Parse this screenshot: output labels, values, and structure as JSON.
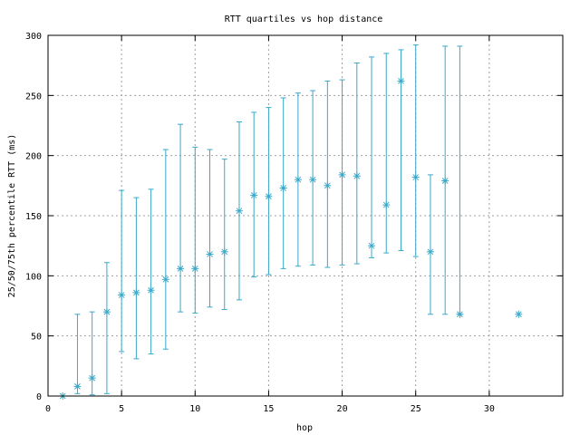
{
  "chart_data": {
    "type": "scatter",
    "title": "RTT quartiles vs hop distance",
    "xlabel": "hop",
    "ylabel": "25/50/75th percentile RTT (ms)",
    "xlim": [
      0,
      35
    ],
    "ylim": [
      0,
      300
    ],
    "xticks": [
      "0",
      "5",
      "10",
      "15",
      "20",
      "25",
      "30"
    ],
    "yticks": [
      "0",
      "50",
      "100",
      "150",
      "200",
      "250",
      "300"
    ],
    "grid": true,
    "color": "#3aa8c8",
    "series": [
      {
        "points": [
          {
            "x": 1,
            "median": 0,
            "p25": 0,
            "p75": 0
          },
          {
            "x": 2,
            "median": 8,
            "p25": 2,
            "p75": 68
          },
          {
            "x": 3,
            "median": 15,
            "p25": 1,
            "p75": 70
          },
          {
            "x": 4,
            "median": 70,
            "p25": 2,
            "p75": 111
          },
          {
            "x": 5,
            "median": 84,
            "p25": 37,
            "p75": 171
          },
          {
            "x": 6,
            "median": 86,
            "p25": 31,
            "p75": 165
          },
          {
            "x": 7,
            "median": 88,
            "p25": 35,
            "p75": 172
          },
          {
            "x": 8,
            "median": 97,
            "p25": 39,
            "p75": 205
          },
          {
            "x": 9,
            "median": 106,
            "p25": 70,
            "p75": 226
          },
          {
            "x": 10,
            "median": 106,
            "p25": 69,
            "p75": 207
          },
          {
            "x": 11,
            "median": 118,
            "p25": 74,
            "p75": 205
          },
          {
            "x": 12,
            "median": 120,
            "p25": 72,
            "p75": 197
          },
          {
            "x": 13,
            "median": 154,
            "p25": 80,
            "p75": 228
          },
          {
            "x": 14,
            "median": 167,
            "p25": 99,
            "p75": 236
          },
          {
            "x": 15,
            "median": 166,
            "p25": 101,
            "p75": 240
          },
          {
            "x": 16,
            "median": 173,
            "p25": 106,
            "p75": 248
          },
          {
            "x": 17,
            "median": 180,
            "p25": 108,
            "p75": 252
          },
          {
            "x": 18,
            "median": 180,
            "p25": 109,
            "p75": 254
          },
          {
            "x": 19,
            "median": 175,
            "p25": 107,
            "p75": 262
          },
          {
            "x": 20,
            "median": 184,
            "p25": 109,
            "p75": 263
          },
          {
            "x": 21,
            "median": 183,
            "p25": 110,
            "p75": 277
          },
          {
            "x": 22,
            "median": 125,
            "p25": 115,
            "p75": 282
          },
          {
            "x": 23,
            "median": 159,
            "p25": 119,
            "p75": 285
          },
          {
            "x": 24,
            "median": 262,
            "p25": 121,
            "p75": 288
          },
          {
            "x": 25,
            "median": 182,
            "p25": 116,
            "p75": 292
          },
          {
            "x": 26,
            "median": 120,
            "p25": 68,
            "p75": 184
          },
          {
            "x": 27,
            "median": 179,
            "p25": 68,
            "p75": 291
          },
          {
            "x": 28,
            "median": 68,
            "p25": 68,
            "p75": 291
          },
          {
            "x": 32,
            "median": 68,
            "p25": 68,
            "p75": 68
          }
        ]
      }
    ]
  }
}
